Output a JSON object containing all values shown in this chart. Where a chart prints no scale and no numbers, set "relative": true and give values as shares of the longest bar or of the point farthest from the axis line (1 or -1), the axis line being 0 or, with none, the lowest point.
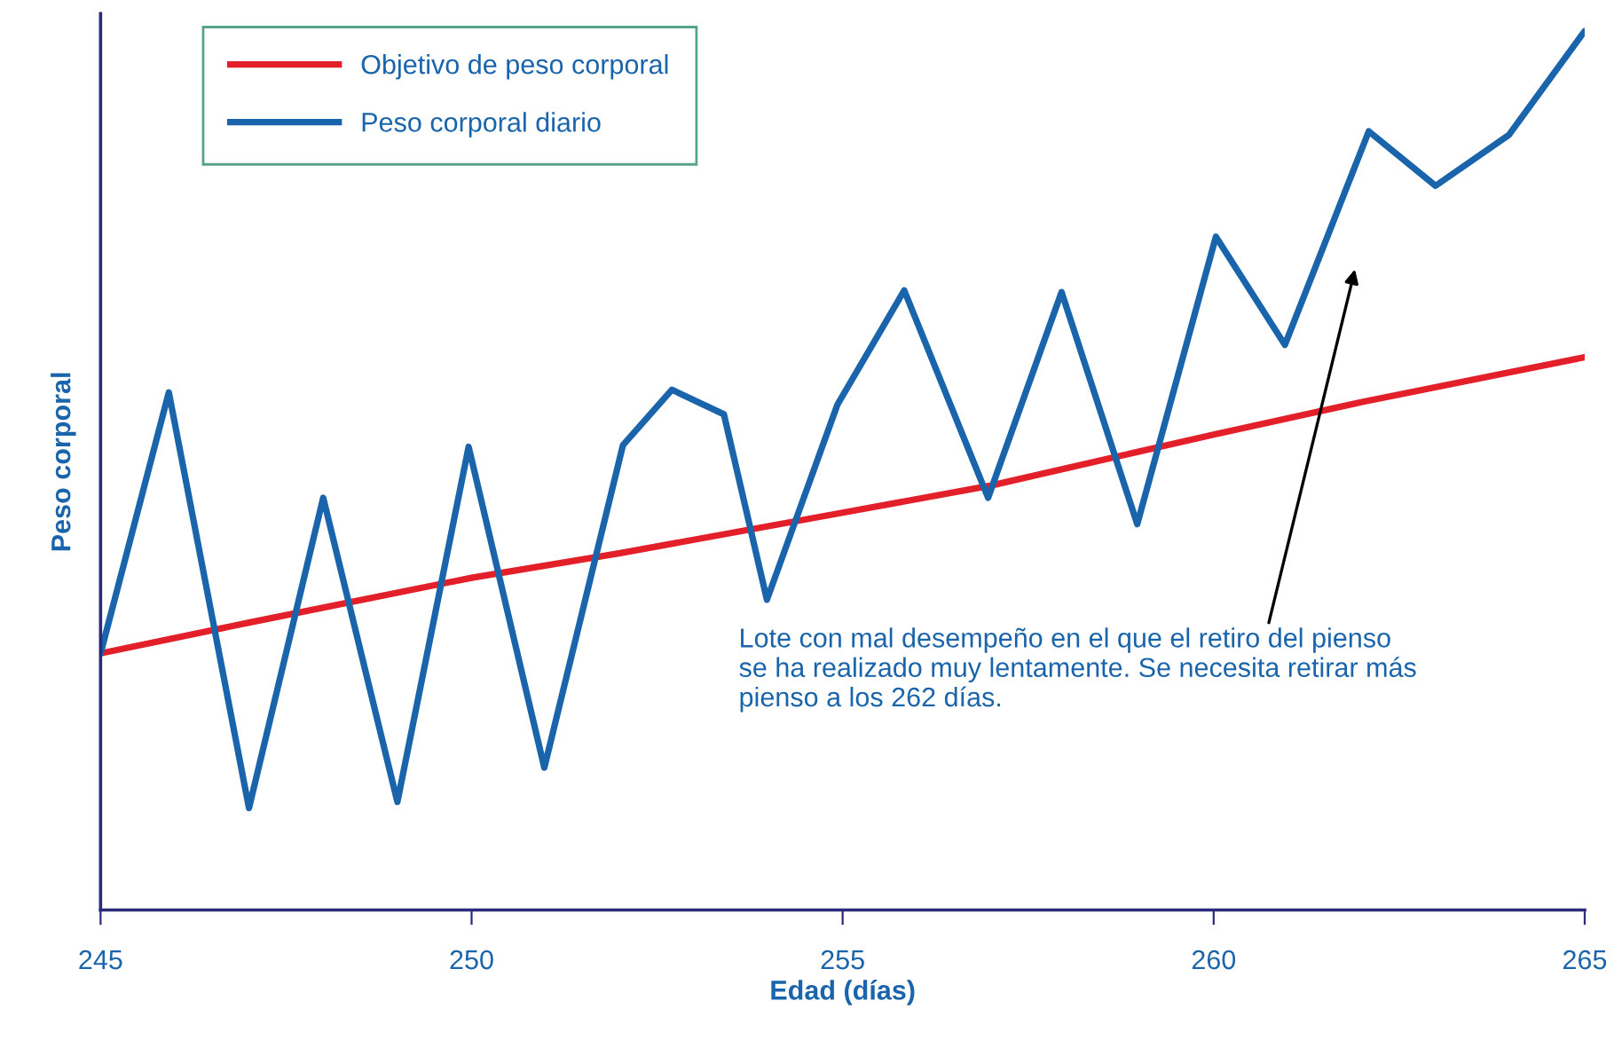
{
  "chart_data": {
    "type": "line",
    "relative": true,
    "xlabel": "Edad (días)",
    "ylabel": "Peso corporal",
    "xlim": [
      245,
      265
    ],
    "xticks": [
      245,
      250,
      255,
      260,
      265
    ],
    "legend": "top left",
    "grid": false,
    "series": [
      {
        "name": "Objetivo de peso corporal",
        "color": "#e3202a",
        "x": [
          245,
          247,
          250,
          252,
          255,
          257,
          260,
          262,
          265
        ],
        "values": [
          0.292,
          0.327,
          0.378,
          0.406,
          0.452,
          0.483,
          0.541,
          0.578,
          0.629
        ]
      },
      {
        "name": "Peso corporal diario",
        "color": "#1a64ab",
        "x": [
          245,
          245.92,
          247,
          248,
          249,
          249.96,
          250.98,
          252.04,
          252.7,
          253.4,
          253.98,
          254.93,
          255.83,
          256.96,
          257.95,
          258.97,
          260.03,
          260.96,
          262.09,
          262.99,
          263.98,
          265
        ],
        "values": [
          0.292,
          0.589,
          0.116,
          0.469,
          0.123,
          0.527,
          0.162,
          0.529,
          0.592,
          0.564,
          0.353,
          0.575,
          0.705,
          0.469,
          0.703,
          0.439,
          0.766,
          0.643,
          0.886,
          0.824,
          0.882,
          1.0
        ]
      }
    ],
    "annotations": [
      "Lote con mal desempeño en el que el retiro del pienso\nse ha realizado muy lentamente. Se necesita retirar más\npienso a los 262 días."
    ]
  }
}
